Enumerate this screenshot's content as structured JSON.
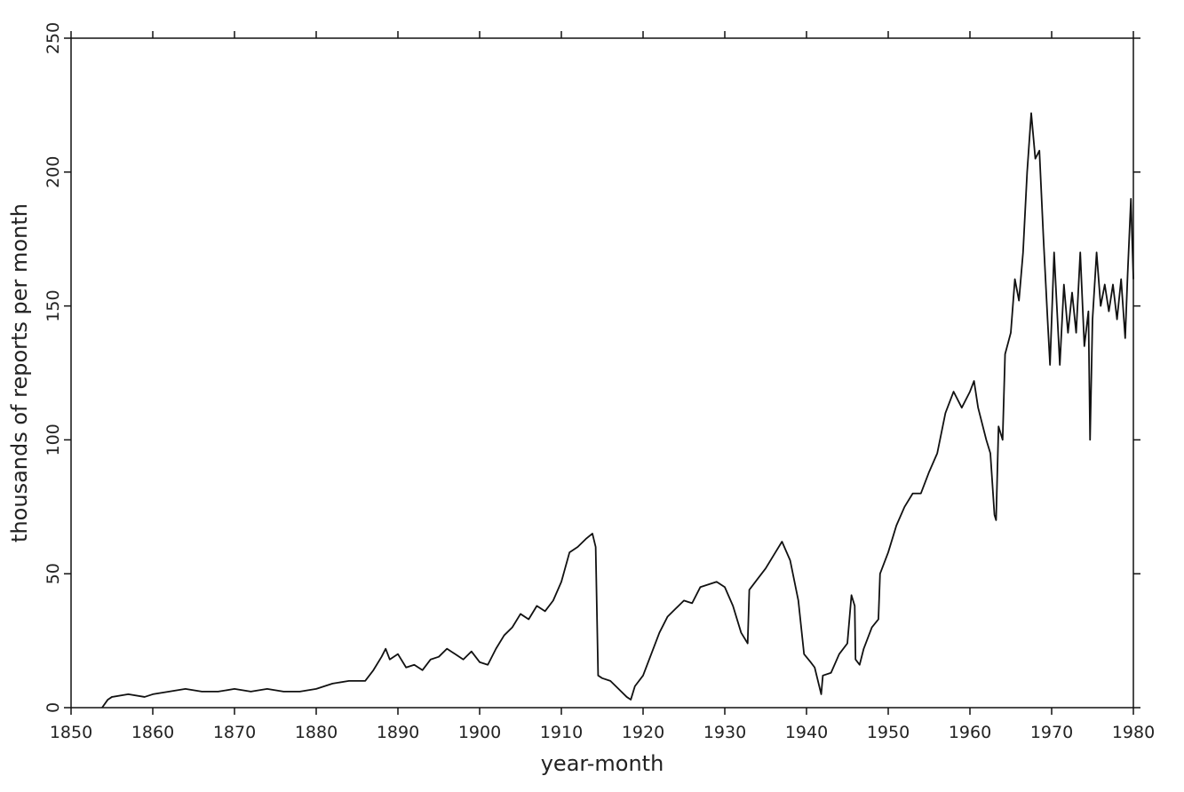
{
  "chart_data": {
    "type": "line",
    "x_label": "year-month",
    "y_label": "thousands of reports per month",
    "color": "#111111",
    "grid": false,
    "xlim": [
      1850,
      1980
    ],
    "ylim": [
      0,
      250
    ],
    "xticks": [
      1850,
      1860,
      1870,
      1880,
      1890,
      1900,
      1910,
      1920,
      1930,
      1940,
      1950,
      1960,
      1970,
      1980
    ],
    "yticks": [
      0,
      50,
      100,
      150,
      200,
      250
    ],
    "x": [
      1853.8,
      1854.5,
      1855,
      1857,
      1859,
      1860,
      1862,
      1864,
      1866,
      1868,
      1870,
      1872,
      1874,
      1876,
      1878,
      1880,
      1882,
      1884,
      1886,
      1887,
      1888,
      1888.5,
      1889,
      1890,
      1891,
      1892,
      1893,
      1894,
      1895,
      1896,
      1897,
      1898,
      1899,
      1900,
      1901,
      1902,
      1903,
      1904,
      1905,
      1906,
      1907,
      1908,
      1909,
      1910,
      1911,
      1912,
      1913,
      1913.8,
      1914.2,
      1914.5,
      1915,
      1916,
      1917,
      1918,
      1918.5,
      1919,
      1920,
      1921,
      1922,
      1923,
      1924,
      1925,
      1926,
      1927,
      1928,
      1929,
      1930,
      1931,
      1932,
      1932.8,
      1933,
      1934,
      1935,
      1936,
      1937,
      1938,
      1939,
      1939.7,
      1940.5,
      1941,
      1941.8,
      1942,
      1943,
      1944,
      1945,
      1945.5,
      1945.9,
      1946,
      1946.5,
      1947,
      1948,
      1948.8,
      1949,
      1950,
      1951,
      1952,
      1953,
      1954,
      1955,
      1956,
      1957,
      1958,
      1959,
      1960,
      1960.5,
      1961,
      1962,
      1962.5,
      1963,
      1963.2,
      1963.5,
      1964,
      1964.3,
      1965,
      1965.5,
      1966,
      1966.5,
      1967,
      1967.5,
      1968,
      1968.5,
      1969,
      1969.5,
      1969.8,
      1970.3,
      1970.8,
      1971,
      1971.5,
      1972,
      1972.5,
      1973,
      1973.5,
      1974,
      1974.5,
      1974.7,
      1975,
      1975.5,
      1976,
      1976.5,
      1977,
      1977.5,
      1978,
      1978.5,
      1979,
      1979.3,
      1979.7,
      1980
    ],
    "values": [
      0,
      3,
      4,
      5,
      4,
      5,
      6,
      7,
      6,
      6,
      7,
      6,
      7,
      6,
      6,
      7,
      9,
      10,
      10,
      14,
      19,
      22,
      18,
      20,
      15,
      16,
      14,
      18,
      19,
      22,
      20,
      18,
      21,
      17,
      16,
      22,
      27,
      30,
      35,
      33,
      38,
      36,
      40,
      47,
      58,
      60,
      63,
      65,
      60,
      12,
      11,
      10,
      7,
      4,
      3,
      8,
      12,
      20,
      28,
      34,
      37,
      40,
      39,
      45,
      46,
      47,
      45,
      38,
      28,
      24,
      44,
      48,
      52,
      57,
      62,
      55,
      40,
      20,
      17,
      15,
      5,
      12,
      13,
      20,
      24,
      42,
      38,
      18,
      16,
      22,
      30,
      33,
      50,
      58,
      68,
      75,
      80,
      80,
      88,
      95,
      110,
      118,
      112,
      118,
      122,
      112,
      100,
      95,
      72,
      70,
      105,
      100,
      132,
      140,
      160,
      152,
      170,
      200,
      222,
      205,
      208,
      175,
      145,
      128,
      170,
      140,
      128,
      158,
      140,
      155,
      140,
      170,
      135,
      148,
      100,
      145,
      170,
      150,
      158,
      148,
      158,
      145,
      160,
      138,
      162,
      190,
      160
    ]
  }
}
